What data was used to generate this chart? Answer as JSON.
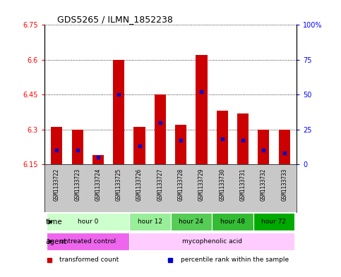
{
  "title": "GDS5265 / ILMN_1852238",
  "samples": [
    "GSM1133722",
    "GSM1133723",
    "GSM1133724",
    "GSM1133725",
    "GSM1133726",
    "GSM1133727",
    "GSM1133728",
    "GSM1133729",
    "GSM1133730",
    "GSM1133731",
    "GSM1133732",
    "GSM1133733"
  ],
  "base_value": 6.15,
  "transformed_counts": [
    6.31,
    6.3,
    6.19,
    6.6,
    6.31,
    6.45,
    6.32,
    6.62,
    6.38,
    6.37,
    6.3,
    6.3
  ],
  "percentile_ranks": [
    10,
    10,
    5,
    50,
    13,
    30,
    17,
    52,
    18,
    17,
    10,
    8
  ],
  "ylim_left": [
    6.15,
    6.75
  ],
  "ylim_right": [
    0,
    100
  ],
  "yticks_left": [
    6.15,
    6.3,
    6.45,
    6.6,
    6.75
  ],
  "yticks_right": [
    0,
    25,
    50,
    75,
    100
  ],
  "ytick_labels_left": [
    "6.15",
    "6.3",
    "6.45",
    "6.6",
    "6.75"
  ],
  "ytick_labels_right": [
    "0",
    "25",
    "50",
    "75",
    "100%"
  ],
  "bar_color": "#cc0000",
  "blue_color": "#0000cc",
  "time_groups": [
    {
      "label": "hour 0",
      "start": 0,
      "end": 4,
      "color": "#ccffcc"
    },
    {
      "label": "hour 12",
      "start": 4,
      "end": 6,
      "color": "#99ee99"
    },
    {
      "label": "hour 24",
      "start": 6,
      "end": 8,
      "color": "#55cc55"
    },
    {
      "label": "hour 48",
      "start": 8,
      "end": 10,
      "color": "#33bb33"
    },
    {
      "label": "hour 72",
      "start": 10,
      "end": 12,
      "color": "#00aa00"
    }
  ],
  "agent_groups": [
    {
      "label": "untreated control",
      "start": 0,
      "end": 4,
      "color": "#ee66ee"
    },
    {
      "label": "mycophenolic acid",
      "start": 4,
      "end": 12,
      "color": "#ffccff"
    }
  ],
  "legend_items": [
    {
      "color": "#cc0000",
      "label": "transformed count"
    },
    {
      "color": "#0000cc",
      "label": "percentile rank within the sample"
    }
  ],
  "time_label": "time",
  "agent_label": "agent",
  "sample_bg_color": "#c8c8c8"
}
